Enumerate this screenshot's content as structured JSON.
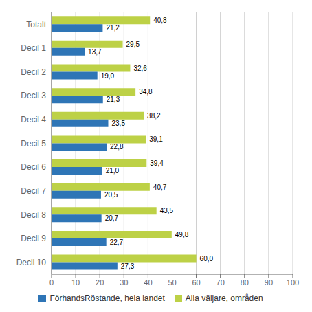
{
  "chart_data": {
    "type": "bar",
    "orientation": "horizontal",
    "categories": [
      "Totalt",
      "Decil 1",
      "Decil 2",
      "Decil 3",
      "Decil 4",
      "Decil 5",
      "Decil 6",
      "Decil 7",
      "Decil 8",
      "Decil 9",
      "Decil 10"
    ],
    "series": [
      {
        "name": "FörhandsRöstande, hela landet",
        "color": "#2e75b6",
        "values": [
          21.2,
          13.7,
          19.0,
          21.3,
          23.5,
          22.8,
          21.0,
          20.5,
          20.7,
          22.7,
          27.3
        ],
        "value_labels": [
          "21,2",
          "13,7",
          "19,0",
          "21,3",
          "23,5",
          "22,8",
          "21,0",
          "20,5",
          "20,7",
          "22,7",
          "27,3"
        ]
      },
      {
        "name": "Alla väljare, områden",
        "color": "#bdd146",
        "values": [
          40.8,
          29.5,
          32.6,
          34.8,
          38.2,
          39.1,
          39.4,
          40.7,
          43.5,
          49.8,
          60.0
        ],
        "value_labels": [
          "40,8",
          "29,5",
          "32,6",
          "34,8",
          "38,2",
          "39,1",
          "39,4",
          "40,7",
          "43,5",
          "49,8",
          "60,0"
        ]
      }
    ],
    "xlim": [
      0,
      100
    ],
    "xticks": [
      0,
      10,
      20,
      30,
      40,
      50,
      60,
      70,
      80,
      90,
      100
    ],
    "grid": true,
    "data_labels": true,
    "legend": "bottom"
  }
}
